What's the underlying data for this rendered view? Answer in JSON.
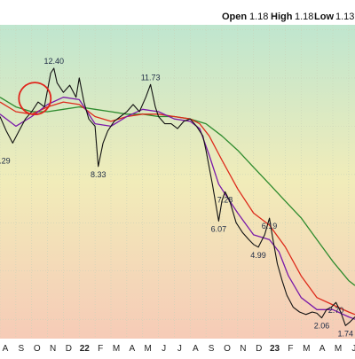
{
  "header": {
    "open_label": "Open",
    "open_value": "1.18",
    "high_label": "High",
    "high_value": "1.18",
    "low_label": "Low",
    "low_value": "1.13"
  },
  "chart_data": {
    "type": "line",
    "title": "",
    "xlabel": "",
    "ylabel": "",
    "x_ticks": [
      "A",
      "S",
      "O",
      "N",
      "D",
      "22",
      "F",
      "M",
      "A",
      "M",
      "J",
      "J",
      "A",
      "S",
      "O",
      "N",
      "D",
      "23",
      "F",
      "M",
      "A",
      "M",
      "J"
    ],
    "x_range": [
      0,
      22.4
    ],
    "ylim": [
      1.2,
      14.2
    ],
    "grid": true,
    "legend": "none",
    "series": [
      {
        "color": "#111111",
        "points": [
          [
            0.0,
            10.4
          ],
          [
            0.4,
            9.8
          ],
          [
            0.8,
            9.3
          ],
          [
            1.2,
            9.8
          ],
          [
            1.6,
            10.3
          ],
          [
            2.0,
            10.6
          ],
          [
            2.4,
            11.0
          ],
          [
            2.8,
            10.8
          ],
          [
            3.2,
            12.2
          ],
          [
            3.4,
            12.4
          ],
          [
            3.6,
            11.8
          ],
          [
            4.0,
            11.4
          ],
          [
            4.4,
            11.7
          ],
          [
            4.8,
            11.2
          ],
          [
            5.0,
            12.0
          ],
          [
            5.3,
            11.0
          ],
          [
            5.6,
            10.3
          ],
          [
            6.0,
            10.0
          ],
          [
            6.2,
            8.33
          ],
          [
            6.5,
            9.3
          ],
          [
            6.8,
            9.8
          ],
          [
            7.2,
            10.2
          ],
          [
            7.6,
            10.4
          ],
          [
            8.0,
            10.6
          ],
          [
            8.4,
            10.9
          ],
          [
            8.8,
            10.6
          ],
          [
            9.2,
            11.2
          ],
          [
            9.5,
            11.73
          ],
          [
            9.8,
            10.8
          ],
          [
            10.0,
            10.4
          ],
          [
            10.4,
            10.1
          ],
          [
            10.8,
            10.1
          ],
          [
            11.2,
            9.9
          ],
          [
            11.6,
            10.2
          ],
          [
            12.0,
            10.3
          ],
          [
            12.4,
            10.0
          ],
          [
            12.8,
            9.6
          ],
          [
            13.0,
            9.0
          ],
          [
            13.4,
            7.6
          ],
          [
            13.8,
            6.07
          ],
          [
            14.0,
            6.9
          ],
          [
            14.2,
            7.28
          ],
          [
            14.5,
            6.9
          ],
          [
            14.9,
            6.0
          ],
          [
            15.3,
            5.6
          ],
          [
            15.7,
            5.3
          ],
          [
            16.0,
            5.1
          ],
          [
            16.3,
            4.99
          ],
          [
            16.7,
            5.5
          ],
          [
            17.0,
            6.19
          ],
          [
            17.2,
            5.4
          ],
          [
            17.5,
            4.3
          ],
          [
            17.8,
            3.6
          ],
          [
            18.1,
            3.0
          ],
          [
            18.5,
            2.5
          ],
          [
            18.9,
            2.3
          ],
          [
            19.3,
            2.2
          ],
          [
            19.7,
            2.3
          ],
          [
            20.0,
            2.25
          ],
          [
            20.3,
            2.06
          ],
          [
            20.6,
            2.4
          ],
          [
            20.9,
            2.5
          ],
          [
            21.2,
            2.7
          ],
          [
            21.5,
            2.3
          ],
          [
            21.8,
            1.74
          ],
          [
            22.1,
            1.9
          ],
          [
            22.4,
            2.1
          ]
        ]
      },
      {
        "color": "#7a1aa8",
        "points": [
          [
            0.0,
            10.5
          ],
          [
            1.0,
            10.0
          ],
          [
            2.0,
            10.4
          ],
          [
            3.0,
            10.9
          ],
          [
            4.0,
            11.2
          ],
          [
            5.0,
            11.1
          ],
          [
            6.0,
            10.1
          ],
          [
            7.0,
            10.0
          ],
          [
            8.0,
            10.4
          ],
          [
            9.0,
            10.7
          ],
          [
            10.0,
            10.6
          ],
          [
            11.0,
            10.3
          ],
          [
            12.0,
            10.2
          ],
          [
            12.6,
            9.9
          ],
          [
            13.2,
            8.8
          ],
          [
            13.8,
            7.6
          ],
          [
            14.4,
            7.0
          ],
          [
            15.0,
            6.4
          ],
          [
            16.0,
            5.5
          ],
          [
            17.0,
            5.3
          ],
          [
            17.6,
            4.8
          ],
          [
            18.2,
            3.8
          ],
          [
            19.0,
            2.9
          ],
          [
            20.0,
            2.4
          ],
          [
            21.0,
            2.4
          ],
          [
            22.0,
            2.1
          ],
          [
            22.4,
            2.0
          ]
        ]
      },
      {
        "color": "#dd2a1b",
        "points": [
          [
            0.0,
            11.0
          ],
          [
            1.0,
            10.6
          ],
          [
            2.0,
            10.5
          ],
          [
            3.0,
            10.8
          ],
          [
            4.0,
            11.0
          ],
          [
            5.0,
            10.9
          ],
          [
            6.0,
            10.4
          ],
          [
            7.0,
            10.2
          ],
          [
            8.0,
            10.4
          ],
          [
            9.0,
            10.5
          ],
          [
            10.0,
            10.5
          ],
          [
            11.0,
            10.4
          ],
          [
            12.0,
            10.3
          ],
          [
            12.6,
            10.1
          ],
          [
            13.2,
            9.6
          ],
          [
            14.0,
            8.6
          ],
          [
            15.0,
            7.4
          ],
          [
            16.0,
            6.4
          ],
          [
            17.0,
            5.9
          ],
          [
            18.0,
            5.0
          ],
          [
            19.0,
            3.8
          ],
          [
            20.0,
            2.9
          ],
          [
            21.0,
            2.6
          ],
          [
            22.0,
            2.3
          ],
          [
            22.4,
            2.2
          ]
        ]
      },
      {
        "color": "#2e8b2e",
        "points": [
          [
            0.0,
            11.2
          ],
          [
            1.0,
            10.8
          ],
          [
            2.0,
            10.6
          ],
          [
            3.0,
            10.6
          ],
          [
            4.0,
            10.7
          ],
          [
            5.0,
            10.8
          ],
          [
            6.0,
            10.7
          ],
          [
            7.0,
            10.6
          ],
          [
            8.0,
            10.5
          ],
          [
            9.0,
            10.5
          ],
          [
            10.0,
            10.4
          ],
          [
            11.0,
            10.4
          ],
          [
            12.0,
            10.3
          ],
          [
            13.0,
            10.1
          ],
          [
            14.0,
            9.6
          ],
          [
            15.0,
            9.0
          ],
          [
            16.0,
            8.3
          ],
          [
            17.0,
            7.6
          ],
          [
            18.0,
            6.9
          ],
          [
            19.0,
            6.2
          ],
          [
            20.0,
            5.3
          ],
          [
            21.0,
            4.4
          ],
          [
            22.0,
            3.6
          ],
          [
            22.4,
            3.4
          ]
        ]
      }
    ],
    "annotations": [
      {
        "text": "12.40",
        "x": 3.4,
        "y": 12.4
      },
      {
        "text": "11.73",
        "x": 9.5,
        "y": 11.73
      },
      {
        "text": "8.33",
        "x": 6.2,
        "y": 8.33
      },
      {
        "text": "7.28",
        "x": 14.2,
        "y": 7.28
      },
      {
        "text": "6.07",
        "x": 13.8,
        "y": 6.07
      },
      {
        "text": "6.19",
        "x": 17.0,
        "y": 6.19
      },
      {
        "text": "4.99",
        "x": 16.3,
        "y": 4.99
      },
      {
        "text": "2.70",
        "x": 21.2,
        "y": 2.7
      },
      {
        "text": "2.06",
        "x": 20.3,
        "y": 2.06
      },
      {
        "text": "1.74",
        "x": 21.8,
        "y": 1.74
      },
      {
        "text": ".29",
        "x": 0.3,
        "y": 8.9
      }
    ],
    "highlight": {
      "x": 2.2,
      "y": 11.0
    },
    "colors": {
      "bg_top": "#bfe6cf",
      "bg_mid": "#f1ecb9",
      "bg_bottom": "#f6cbb7",
      "grid": "#c9d2b8",
      "circle": "#e0241b"
    }
  }
}
